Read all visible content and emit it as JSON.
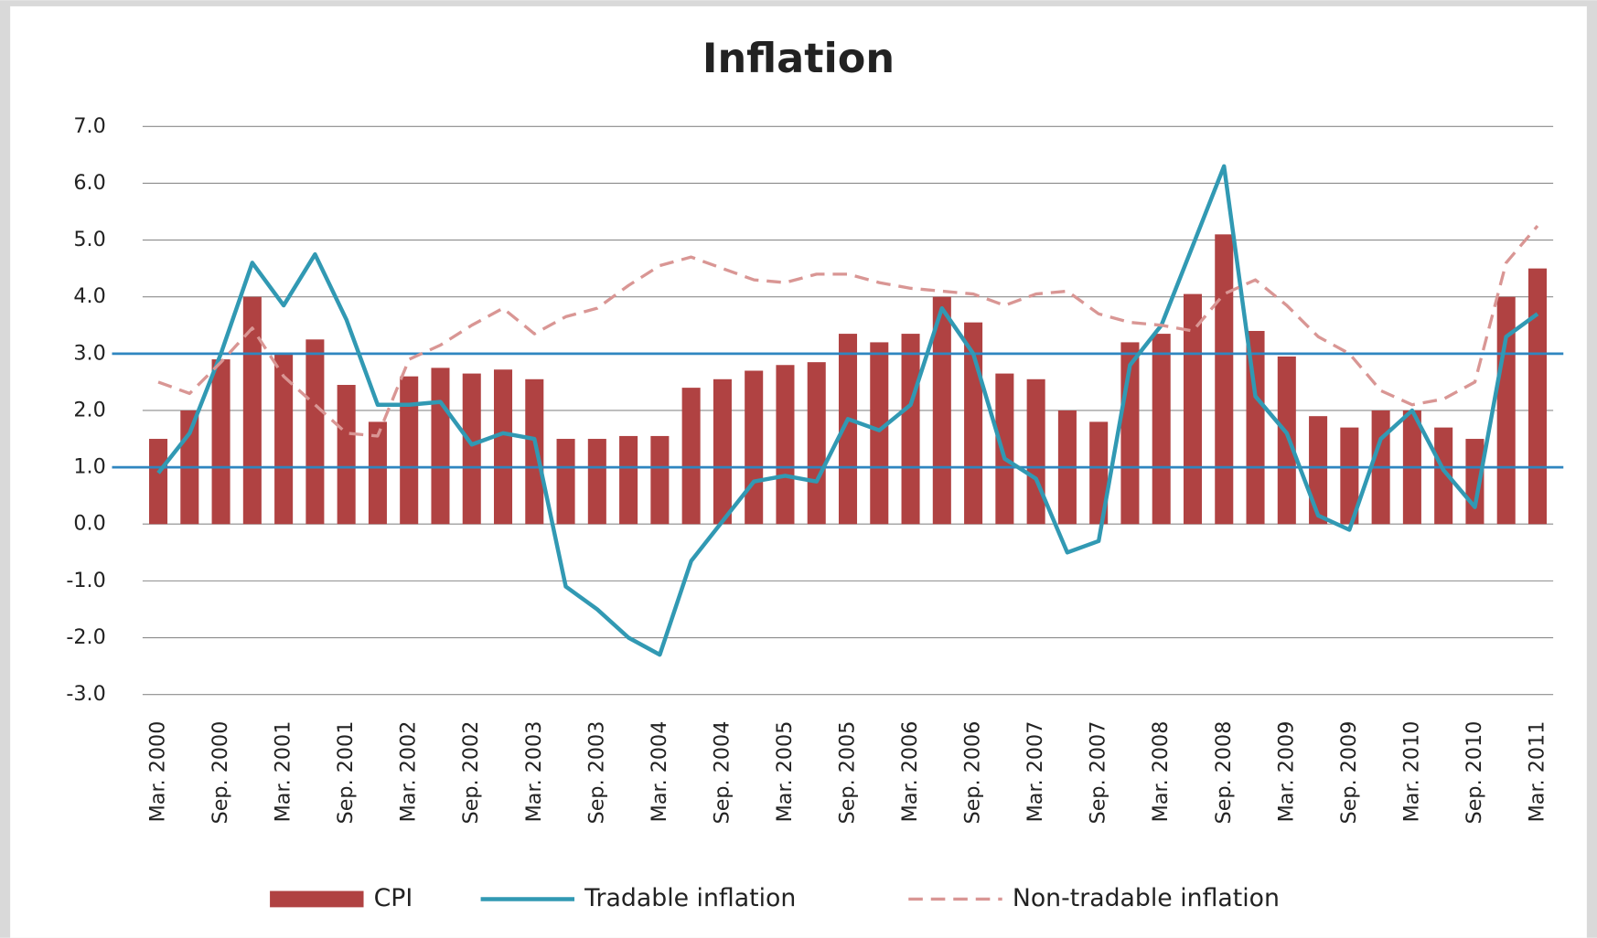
{
  "chart_data": {
    "type": "bar_line",
    "title": "Inflation",
    "categories": [
      "Mar. 2000",
      null,
      "Sep. 2000",
      null,
      "Mar. 2001",
      null,
      "Sep. 2001",
      null,
      "Mar. 2002",
      null,
      "Sep. 2002",
      null,
      "Mar. 2003",
      null,
      "Sep. 2003",
      null,
      "Mar. 2004",
      null,
      "Sep. 2004",
      null,
      "Mar. 2005",
      null,
      "Sep. 2005",
      null,
      "Mar. 2006",
      null,
      "Sep. 2006",
      null,
      "Mar. 2007",
      null,
      "Sep. 2007",
      null,
      "Mar. 2008",
      null,
      "Sep. 2008",
      null,
      "Mar. 2009",
      null,
      "Sep. 2009",
      null,
      "Mar. 2010",
      null,
      "Sep. 2010",
      null,
      "Mar. 2011"
    ],
    "series": [
      {
        "name": "CPI",
        "type": "bar",
        "color": "#b04242",
        "values": [
          1.5,
          2.0,
          2.9,
          4.0,
          3.0,
          3.25,
          2.45,
          1.8,
          2.6,
          2.75,
          2.65,
          2.72,
          2.55,
          1.5,
          1.5,
          1.55,
          1.55,
          2.4,
          2.55,
          2.7,
          2.8,
          2.85,
          3.35,
          3.2,
          3.35,
          4.0,
          3.55,
          2.65,
          2.55,
          2.0,
          1.8,
          3.2,
          3.35,
          4.05,
          5.1,
          3.4,
          2.95,
          1.9,
          1.7,
          2.0,
          2.0,
          1.7,
          1.5,
          4.0,
          4.5
        ]
      },
      {
        "name": "Tradable inflation",
        "type": "line",
        "color": "#3199b3",
        "dashed": false,
        "values": [
          0.9,
          1.6,
          3.0,
          4.6,
          3.85,
          4.75,
          3.6,
          2.1,
          2.1,
          2.15,
          1.4,
          1.6,
          1.5,
          -1.1,
          -1.5,
          -2.0,
          -2.3,
          -0.65,
          0.05,
          0.75,
          0.85,
          0.75,
          1.85,
          1.65,
          2.1,
          3.8,
          3.0,
          1.15,
          0.8,
          -0.5,
          -0.3,
          2.8,
          3.5,
          4.9,
          6.3,
          2.25,
          1.6,
          0.15,
          -0.1,
          1.5,
          2.0,
          0.95,
          0.3,
          3.3,
          3.7
        ]
      },
      {
        "name": "Non-tradable inflation",
        "type": "line",
        "color": "#d99694",
        "dashed": true,
        "values": [
          2.5,
          2.3,
          2.85,
          3.45,
          2.6,
          2.1,
          1.6,
          1.55,
          2.9,
          3.15,
          3.5,
          3.8,
          3.35,
          3.65,
          3.8,
          4.2,
          4.55,
          4.7,
          4.5,
          4.3,
          4.25,
          4.4,
          4.4,
          4.25,
          4.15,
          4.1,
          4.05,
          3.85,
          4.05,
          4.1,
          3.7,
          3.55,
          3.5,
          3.4,
          4.05,
          4.3,
          3.85,
          3.3,
          3.0,
          2.35,
          2.1,
          2.2,
          2.5,
          4.6,
          5.25
        ]
      }
    ],
    "reference_lines": [
      1,
      3
    ],
    "ylim": [
      -3,
      7
    ],
    "yticks": [
      {
        "value": -3,
        "label": "-3.0"
      },
      {
        "value": -2,
        "label": "-2.0"
      },
      {
        "value": -1,
        "label": "-1.0"
      },
      {
        "value": 0,
        "label": "0.0"
      },
      {
        "value": 1,
        "label": "1.0"
      },
      {
        "value": 2,
        "label": "2.0"
      },
      {
        "value": 3,
        "label": "3.0"
      },
      {
        "value": 4,
        "label": "4.0"
      },
      {
        "value": 5,
        "label": "5.0"
      },
      {
        "value": 6,
        "label": "6.0"
      },
      {
        "value": 7,
        "label": "7.0"
      }
    ],
    "grid": true,
    "legend": "bottom"
  }
}
